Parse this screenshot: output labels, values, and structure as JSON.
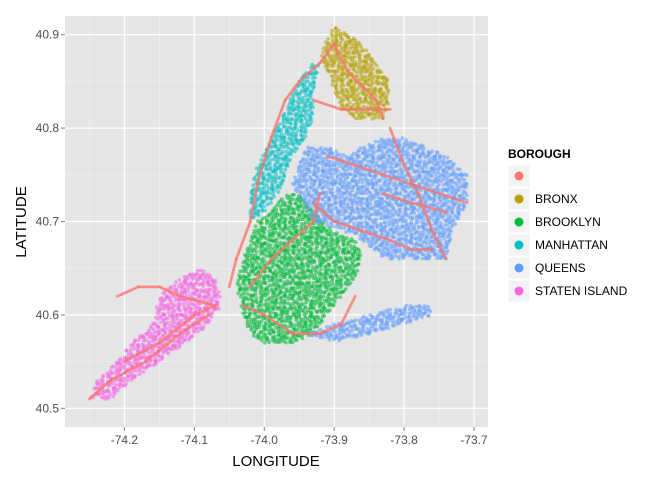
{
  "chart_data": {
    "type": "scatter",
    "xlabel": "LONGITUDE",
    "ylabel": "LATITUDE",
    "xlim": [
      -74.285,
      -73.68
    ],
    "ylim": [
      40.48,
      40.92
    ],
    "x_ticks": [
      {
        "value": -74.2,
        "label": "-74.2"
      },
      {
        "value": -74.1,
        "label": "-74.1"
      },
      {
        "value": -74.0,
        "label": "-74.0"
      },
      {
        "value": -73.9,
        "label": "-73.9"
      },
      {
        "value": -73.8,
        "label": "-73.8"
      },
      {
        "value": -73.7,
        "label": "-73.7"
      }
    ],
    "y_ticks": [
      {
        "value": 40.5,
        "label": "40.5"
      },
      {
        "value": 40.6,
        "label": "40.6"
      },
      {
        "value": 40.7,
        "label": "40.7"
      },
      {
        "value": 40.8,
        "label": "40.8"
      },
      {
        "value": 40.9,
        "label": "40.9"
      }
    ],
    "grid": true,
    "legend_position": "right",
    "legend": {
      "title": "BOROUGH",
      "entries": [
        {
          "label": "",
          "color": "#F8766D"
        },
        {
          "label": "BRONX",
          "color": "#B79F00"
        },
        {
          "label": "BROOKLYN",
          "color": "#00BA38"
        },
        {
          "label": "MANHATTAN",
          "color": "#00BFC4"
        },
        {
          "label": "QUEENS",
          "color": "#619CFF"
        },
        {
          "label": "STATEN ISLAND",
          "color": "#F564E3"
        }
      ]
    },
    "series": [
      {
        "name": "",
        "color": "#F8766D",
        "regions": [
          [
            [
              -74.05,
              40.63
            ],
            [
              -74.04,
              40.66
            ],
            [
              -74.02,
              40.7
            ],
            [
              -74.01,
              40.74
            ],
            [
              -73.99,
              40.79
            ],
            [
              -73.97,
              40.83
            ],
            [
              -73.95,
              40.85
            ]
          ],
          [
            [
              -73.95,
              40.85
            ],
            [
              -73.92,
              40.87
            ],
            [
              -73.9,
              40.89
            ],
            [
              -73.88,
              40.86
            ],
            [
              -73.84,
              40.83
            ],
            [
              -73.83,
              40.81
            ]
          ],
          [
            [
              -73.93,
              40.83
            ],
            [
              -73.89,
              40.82
            ],
            [
              -73.85,
              40.82
            ],
            [
              -73.82,
              40.82
            ]
          ],
          [
            [
              -73.82,
              40.8
            ],
            [
              -73.8,
              40.76
            ],
            [
              -73.78,
              40.73
            ],
            [
              -73.76,
              40.69
            ],
            [
              -73.74,
              40.66
            ]
          ],
          [
            [
              -73.91,
              40.77
            ],
            [
              -73.87,
              40.76
            ],
            [
              -73.83,
              40.75
            ],
            [
              -73.79,
              40.74
            ],
            [
              -73.75,
              40.73
            ],
            [
              -73.71,
              40.72
            ]
          ],
          [
            [
              -73.93,
              40.72
            ],
            [
              -73.9,
              40.7
            ],
            [
              -73.86,
              40.69
            ],
            [
              -73.82,
              40.68
            ],
            [
              -73.79,
              40.67
            ],
            [
              -73.76,
              40.67
            ]
          ],
          [
            [
              -74.02,
              40.63
            ],
            [
              -73.99,
              40.66
            ],
            [
              -73.96,
              40.68
            ],
            [
              -73.93,
              40.7
            ],
            [
              -73.92,
              40.73
            ]
          ],
          [
            [
              -74.03,
              40.61
            ],
            [
              -74.0,
              40.6
            ],
            [
              -73.96,
              40.58
            ],
            [
              -73.92,
              40.58
            ],
            [
              -73.89,
              40.59
            ],
            [
              -73.87,
              40.62
            ]
          ],
          [
            [
              -74.2,
              40.55
            ],
            [
              -74.15,
              40.57
            ],
            [
              -74.1,
              40.6
            ],
            [
              -74.07,
              40.61
            ]
          ],
          [
            [
              -74.21,
              40.62
            ],
            [
              -74.18,
              40.63
            ],
            [
              -74.15,
              40.63
            ],
            [
              -74.12,
              40.62
            ],
            [
              -74.07,
              40.61
            ]
          ],
          [
            [
              -74.25,
              40.51
            ],
            [
              -74.22,
              40.53
            ],
            [
              -74.17,
              40.55
            ],
            [
              -74.12,
              40.58
            ],
            [
              -74.08,
              40.6
            ]
          ],
          [
            [
              -73.83,
              40.73
            ],
            [
              -73.79,
              40.72
            ],
            [
              -73.74,
              40.71
            ]
          ]
        ]
      },
      {
        "name": "BRONX",
        "color": "#B79F00",
        "regions": [
          [
            [
              -73.92,
              40.88
            ],
            [
              -73.91,
              40.86
            ],
            [
              -73.9,
              40.84
            ],
            [
              -73.89,
              40.82
            ],
            [
              -73.87,
              40.81
            ],
            [
              -73.85,
              40.81
            ],
            [
              -73.83,
              40.81
            ],
            [
              -73.82,
              40.83
            ],
            [
              -73.82,
              40.85
            ],
            [
              -73.84,
              40.87
            ],
            [
              -73.86,
              40.89
            ],
            [
              -73.88,
              40.9
            ],
            [
              -73.9,
              40.91
            ]
          ]
        ]
      },
      {
        "name": "BROOKLYN",
        "color": "#00BA38",
        "regions": [
          [
            [
              -74.04,
              40.63
            ],
            [
              -74.03,
              40.66
            ],
            [
              -74.02,
              40.68
            ],
            [
              -74.01,
              40.7
            ],
            [
              -73.99,
              40.71
            ],
            [
              -73.97,
              40.73
            ],
            [
              -73.95,
              40.73
            ],
            [
              -73.93,
              40.71
            ],
            [
              -73.9,
              40.69
            ],
            [
              -73.87,
              40.68
            ],
            [
              -73.86,
              40.66
            ],
            [
              -73.87,
              40.64
            ],
            [
              -73.89,
              40.62
            ],
            [
              -73.91,
              40.6
            ],
            [
              -73.93,
              40.58
            ],
            [
              -73.96,
              40.57
            ],
            [
              -74.0,
              40.57
            ],
            [
              -74.02,
              40.58
            ],
            [
              -74.03,
              40.6
            ]
          ]
        ]
      },
      {
        "name": "MANHATTAN",
        "color": "#00BFC4",
        "regions": [
          [
            [
              -74.02,
              40.7
            ],
            [
              -74.0,
              40.71
            ],
            [
              -73.98,
              40.73
            ],
            [
              -73.97,
              40.75
            ],
            [
              -73.96,
              40.77
            ],
            [
              -73.94,
              40.79
            ],
            [
              -73.93,
              40.81
            ],
            [
              -73.93,
              40.84
            ],
            [
              -73.92,
              40.87
            ],
            [
              -73.93,
              40.87
            ],
            [
              -73.95,
              40.85
            ],
            [
              -73.97,
              40.82
            ],
            [
              -73.99,
              40.79
            ],
            [
              -74.01,
              40.76
            ],
            [
              -74.02,
              40.73
            ]
          ]
        ]
      },
      {
        "name": "QUEENS",
        "color": "#619CFF",
        "regions": [
          [
            [
              -73.96,
              40.74
            ],
            [
              -73.95,
              40.76
            ],
            [
              -73.94,
              40.78
            ],
            [
              -73.91,
              40.78
            ],
            [
              -73.88,
              40.77
            ],
            [
              -73.86,
              40.78
            ],
            [
              -73.83,
              40.79
            ],
            [
              -73.8,
              40.79
            ],
            [
              -73.77,
              40.78
            ],
            [
              -73.74,
              40.77
            ],
            [
              -73.71,
              40.75
            ],
            [
              -73.71,
              40.72
            ],
            [
              -73.73,
              40.69
            ],
            [
              -73.74,
              40.66
            ],
            [
              -73.77,
              40.66
            ],
            [
              -73.8,
              40.66
            ],
            [
              -73.83,
              40.66
            ],
            [
              -73.86,
              40.68
            ],
            [
              -73.89,
              40.69
            ],
            [
              -73.93,
              40.7
            ]
          ],
          [
            [
              -73.94,
              40.58
            ],
            [
              -73.9,
              40.59
            ],
            [
              -73.85,
              40.6
            ],
            [
              -73.8,
              40.61
            ],
            [
              -73.76,
              40.61
            ],
            [
              -73.76,
              40.6
            ],
            [
              -73.8,
              40.59
            ],
            [
              -73.85,
              40.58
            ],
            [
              -73.9,
              40.57
            ]
          ]
        ]
      },
      {
        "name": "STATEN ISLAND",
        "color": "#F564E3",
        "regions": [
          [
            [
              -74.25,
              40.51
            ],
            [
              -74.24,
              40.53
            ],
            [
              -74.21,
              40.55
            ],
            [
              -74.19,
              40.57
            ],
            [
              -74.16,
              40.59
            ],
            [
              -74.15,
              40.62
            ],
            [
              -74.12,
              40.64
            ],
            [
              -74.09,
              40.65
            ],
            [
              -74.07,
              40.64
            ],
            [
              -74.06,
              40.61
            ],
            [
              -74.08,
              40.59
            ],
            [
              -74.11,
              40.57
            ],
            [
              -74.15,
              40.55
            ],
            [
              -74.19,
              40.53
            ],
            [
              -74.22,
              40.51
            ]
          ]
        ]
      }
    ]
  }
}
